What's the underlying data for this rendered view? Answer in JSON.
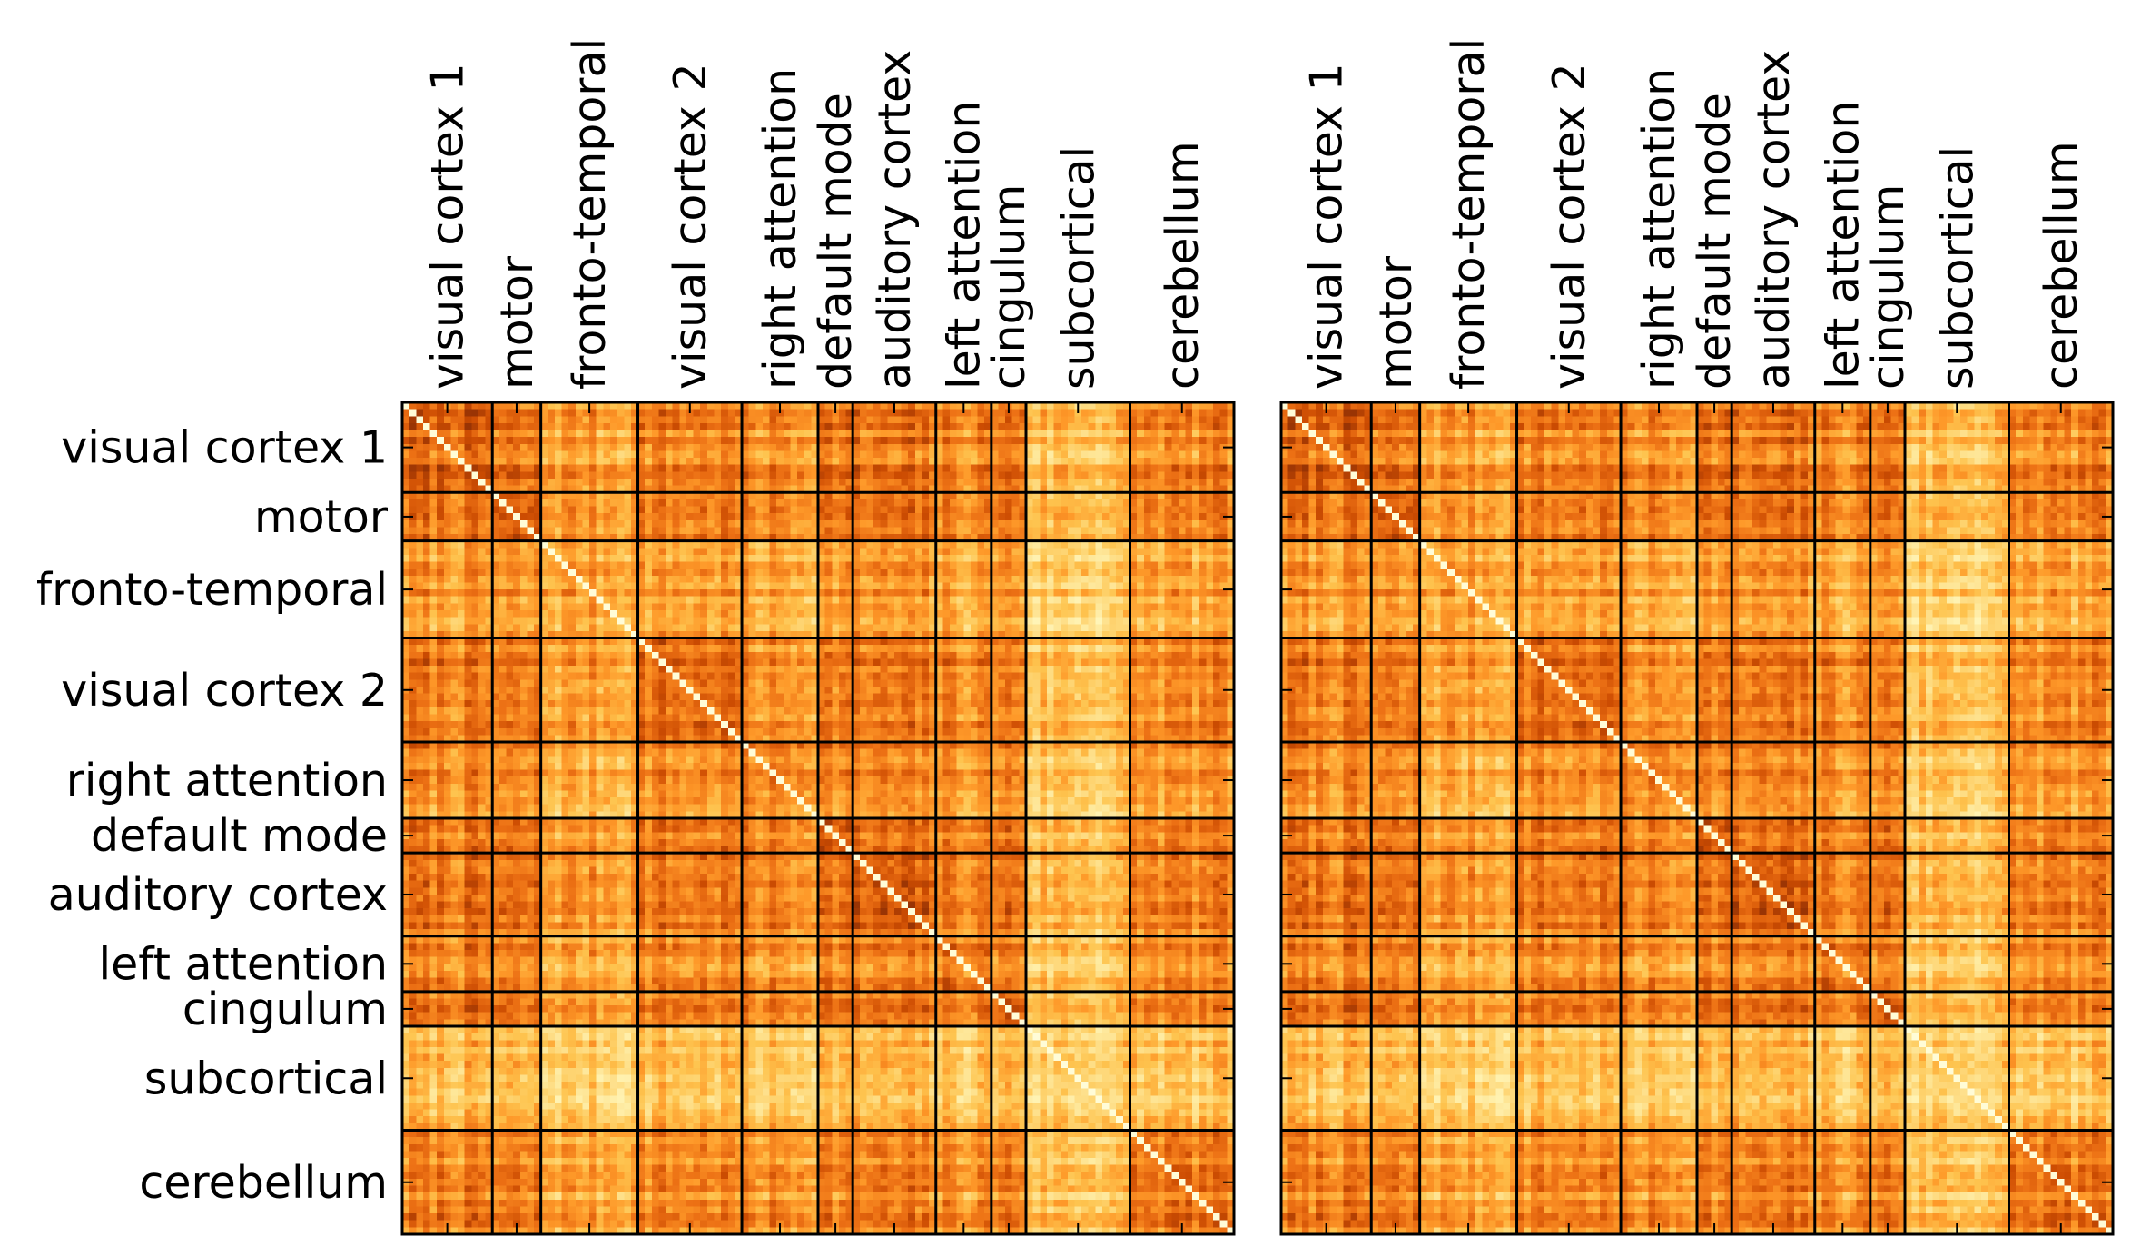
{
  "chart_data": [
    {
      "type": "heatmap",
      "title": "",
      "xlabel": "",
      "ylabel": "",
      "colormap": "YlOrBr (cream to dark brown)",
      "diagonal": "light",
      "block_borders": true,
      "regions": [
        {
          "name": "visual cortex 1",
          "size": 13
        },
        {
          "name": "motor",
          "size": 7
        },
        {
          "name": "fronto-temporal",
          "size": 14
        },
        {
          "name": "visual cortex 2",
          "size": 15
        },
        {
          "name": "right attention",
          "size": 11
        },
        {
          "name": "default mode",
          "size": 5
        },
        {
          "name": "auditory cortex",
          "size": 12
        },
        {
          "name": "left attention",
          "size": 8
        },
        {
          "name": "cingulum",
          "size": 5
        },
        {
          "name": "subcortical",
          "size": 15
        },
        {
          "name": "cerebellum",
          "size": 15
        }
      ],
      "region_base": [
        0.7,
        0.68,
        0.5,
        0.68,
        0.6,
        0.72,
        0.7,
        0.62,
        0.74,
        0.32,
        0.62
      ]
    },
    {
      "type": "heatmap",
      "title": "",
      "xlabel": "",
      "ylabel": "",
      "colormap": "YlOrBr (cream to dark brown)",
      "diagonal": "light",
      "block_borders": true,
      "regions": [
        {
          "name": "visual cortex 1",
          "size": 13
        },
        {
          "name": "motor",
          "size": 7
        },
        {
          "name": "fronto-temporal",
          "size": 14
        },
        {
          "name": "visual cortex 2",
          "size": 15
        },
        {
          "name": "right attention",
          "size": 11
        },
        {
          "name": "default mode",
          "size": 5
        },
        {
          "name": "auditory cortex",
          "size": 12
        },
        {
          "name": "left attention",
          "size": 8
        },
        {
          "name": "cingulum",
          "size": 5
        },
        {
          "name": "subcortical",
          "size": 15
        },
        {
          "name": "cerebellum",
          "size": 15
        }
      ],
      "region_base": [
        0.7,
        0.68,
        0.5,
        0.68,
        0.6,
        0.72,
        0.7,
        0.62,
        0.74,
        0.32,
        0.62
      ]
    }
  ]
}
